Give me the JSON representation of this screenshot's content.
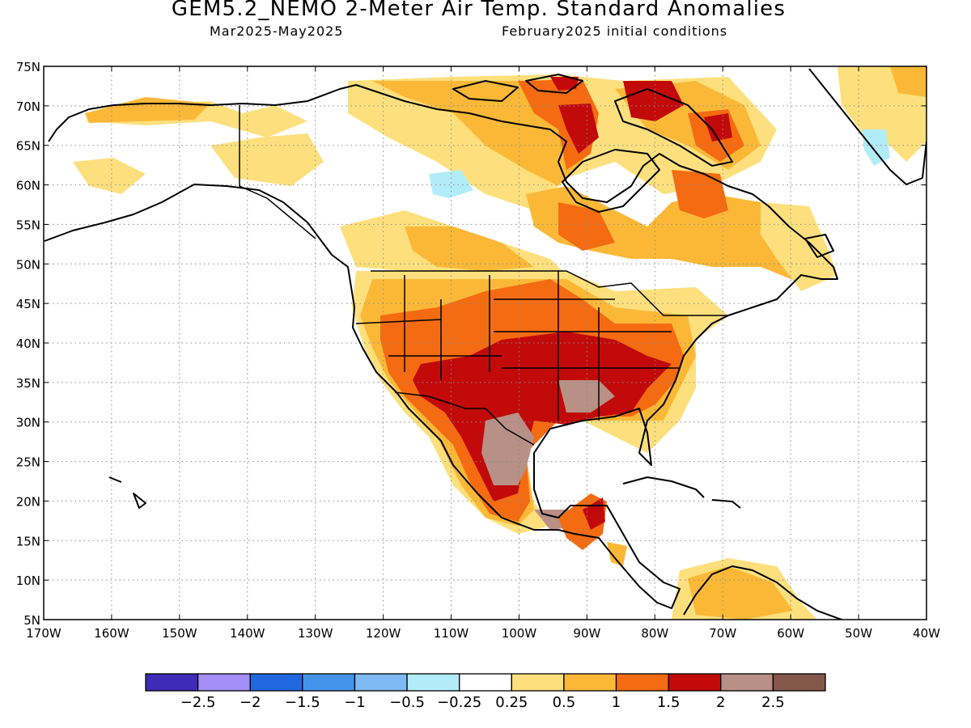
{
  "title": "GEM5.2_NEMO 2-Meter Air Temp. Standard Anomalies",
  "subtitle_left": "Mar2025-May2025",
  "subtitle_right": "February2025 initial conditions",
  "map": {
    "lon_range": [
      -170,
      -40
    ],
    "lat_range": [
      5,
      75
    ],
    "lon_ticks": [
      "170W",
      "160W",
      "150W",
      "140W",
      "130W",
      "120W",
      "110W",
      "100W",
      "90W",
      "80W",
      "70W",
      "60W",
      "50W",
      "40W"
    ],
    "lat_ticks": [
      "75N",
      "70N",
      "65N",
      "60N",
      "55N",
      "50N",
      "45N",
      "40N",
      "35N",
      "30N",
      "25N",
      "20N",
      "15N",
      "10N",
      "5N"
    ],
    "gridlines": "dotted"
  },
  "colorbar": {
    "colors": [
      "#3f2bb5",
      "#a38ff7",
      "#2168e0",
      "#4594ec",
      "#7fbaf4",
      "#b2ecf8",
      "#ffffff",
      "#fde07d",
      "#fbb837",
      "#f46b11",
      "#c20a0a",
      "#b89086",
      "#835749"
    ],
    "labels": [
      "−2.5",
      "−2",
      "−1.5",
      "−1",
      "−0.5",
      "−0.25",
      "0.25",
      "0.5",
      "1",
      "1.5",
      "2",
      "2.5"
    ]
  }
}
